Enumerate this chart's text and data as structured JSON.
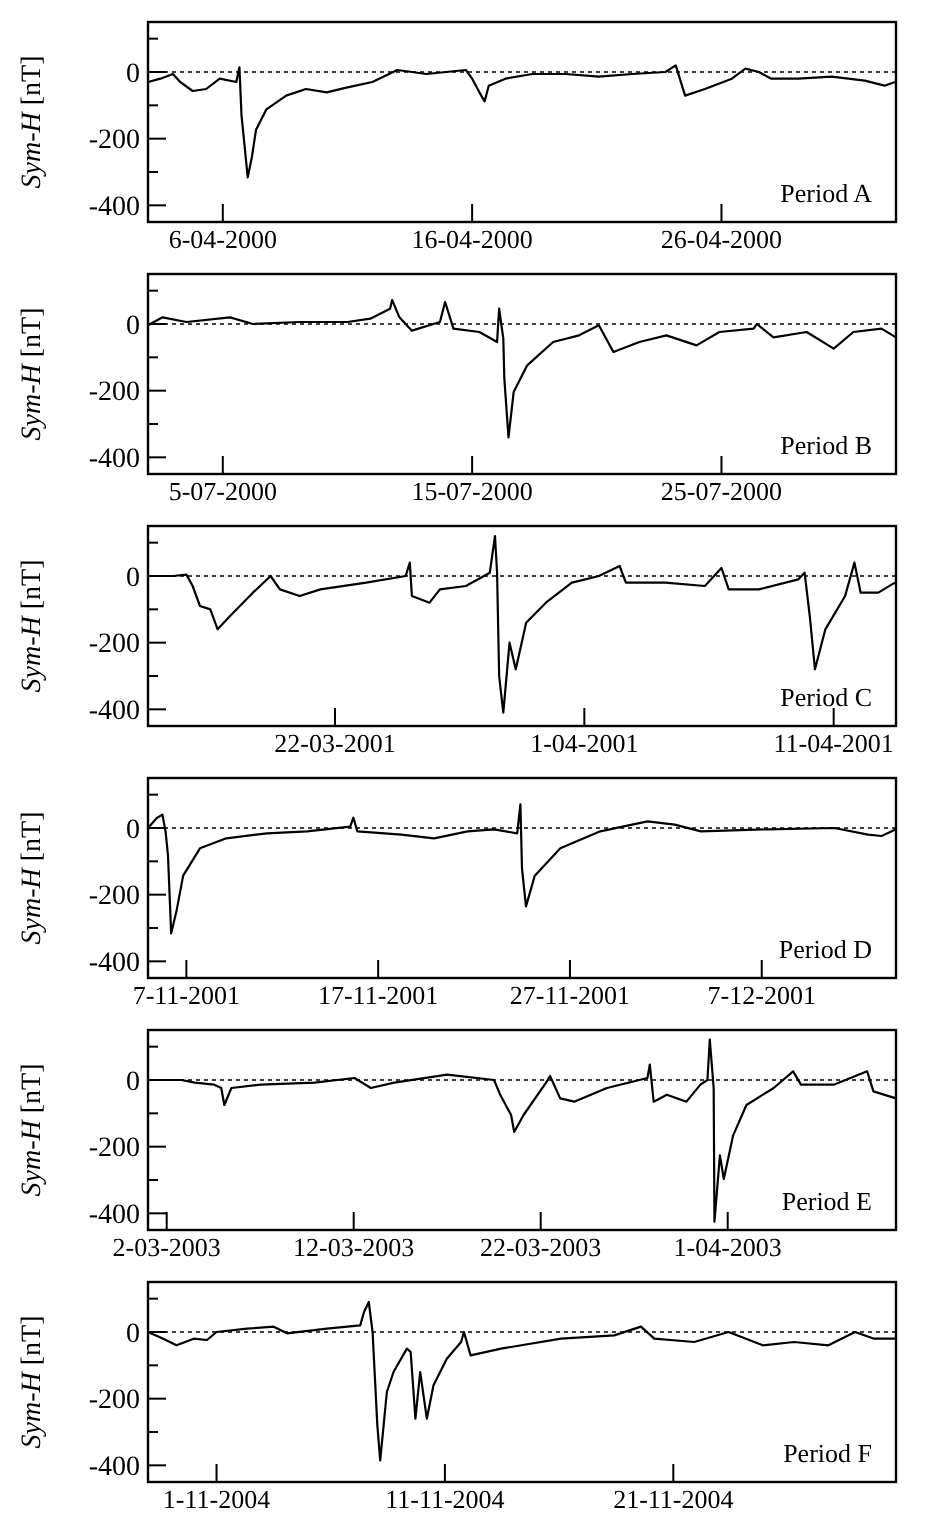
{
  "chart_data": [
    {
      "type": "line",
      "ylabel": "Sym-H [nT]",
      "annotations": [
        "Period A"
      ],
      "xlim": [
        "2000-04-03",
        "2000-05-03"
      ],
      "ylim": [
        -450,
        150
      ],
      "yticks": [
        {
          "value": 100,
          "label": null
        },
        0,
        {
          "value": -100,
          "label": null
        },
        -200,
        {
          "value": -300,
          "label": null
        },
        -400
      ],
      "xticks": [
        {
          "value": "2000-04-06",
          "label": "6-04-2000"
        },
        {
          "value": "2000-04-16",
          "label": "16-04-2000"
        },
        {
          "value": "2000-04-26",
          "label": "26-04-2000"
        }
      ],
      "ref_lines": [
        {
          "axis": "y",
          "value": 0,
          "line_style": "dotted"
        }
      ],
      "line_style": "solid",
      "series": [
        {
          "color": "#000000",
          "x": [
            "2000-04-03T00:00",
            "2000-04-03T12:00",
            "2000-04-04T00:00",
            "2000-04-04T07:00",
            "2000-04-04T19:00",
            "2000-04-05T08:00",
            "2000-04-05T21:00",
            "2000-04-06T13:00",
            "2000-04-06T16:00",
            "2000-04-06T18:00",
            "2000-04-07T00:00",
            "2000-04-07T04:00",
            "2000-04-07T08:00",
            "2000-04-07T18:00",
            "2000-04-08T13:00",
            "2000-04-09T08:00",
            "2000-04-10T04:00",
            "2000-04-10T23:00",
            "2000-04-12T00:00",
            "2000-04-13T00:00",
            "2000-04-14T04:00",
            "2000-04-15T18:00",
            "2000-04-16T00:00",
            "2000-04-16T07:00",
            "2000-04-16T12:00",
            "2000-04-16T16:00",
            "2000-04-17T08:00",
            "2000-04-18T10:00",
            "2000-04-19T18:00",
            "2000-04-21T02:00",
            "2000-04-22T10:00",
            "2000-04-23T18:00",
            "2000-04-24T04:00",
            "2000-04-24T10:00",
            "2000-04-24T13:00",
            "2000-04-25T08:00",
            "2000-04-26T10:00",
            "2000-04-26T23:00",
            "2000-04-27T12:00",
            "2000-04-28T00:00",
            "2000-04-29T02:00",
            "2000-04-30T10:00",
            "2000-05-01T18:00",
            "2000-05-02T13:00",
            "2000-05-02T23:00"
          ],
          "values": [
            -30,
            -20,
            -6,
            -30,
            -57,
            -51,
            -20,
            -30,
            14,
            -130,
            -316,
            -255,
            -173,
            -112,
            -71,
            -51,
            -61,
            -47,
            -30,
            6,
            -6,
            6,
            -20,
            -61,
            -88,
            -41,
            -20,
            -6,
            -6,
            -14,
            -6,
            0,
            20,
            -41,
            -71,
            -51,
            -20,
            10,
            0,
            -20,
            -20,
            -14,
            -26,
            -41,
            -30
          ]
        }
      ]
    },
    {
      "type": "line",
      "ylabel": "Sym-H [nT]",
      "annotations": [
        "Period B"
      ],
      "xlim": [
        "2000-07-02",
        "2000-08-01"
      ],
      "ylim": [
        -450,
        150
      ],
      "yticks": [
        {
          "value": 100,
          "label": null
        },
        0,
        {
          "value": -100,
          "label": null
        },
        -200,
        {
          "value": -300,
          "label": null
        },
        -400
      ],
      "xticks": [
        {
          "value": "2000-07-05",
          "label": "5-07-2000"
        },
        {
          "value": "2000-07-15",
          "label": "15-07-2000"
        },
        {
          "value": "2000-07-25",
          "label": "25-07-2000"
        }
      ],
      "ref_lines": [
        {
          "axis": "y",
          "value": 0,
          "line_style": "dotted"
        }
      ],
      "line_style": "solid",
      "series": [
        {
          "color": "#000000",
          "x": [
            "2000-07-02T00:00",
            "2000-07-02T14:00",
            "2000-07-03T13:00",
            "2000-07-05T07:00",
            "2000-07-06T05:00",
            "2000-07-08T02:00",
            "2000-07-10T00:00",
            "2000-07-10T22:00",
            "2000-07-11T17:00",
            "2000-07-11T19:00",
            "2000-07-12T02:00",
            "2000-07-12T14:00",
            "2000-07-13T17:00",
            "2000-07-13T22:00",
            "2000-07-14T06:00",
            "2000-07-15T07:00",
            "2000-07-16T00:00",
            "2000-07-16T02:00",
            "2000-07-16T06:00",
            "2000-07-16T07:00",
            "2000-07-16T11:00",
            "2000-07-16T16:00",
            "2000-07-17T05:00",
            "2000-07-18T06:00",
            "2000-07-19T07:00",
            "2000-07-20T02:00",
            "2000-07-20T16:00",
            "2000-07-21T17:00",
            "2000-07-22T19:00",
            "2000-07-24T00:00",
            "2000-07-24T22:00",
            "2000-07-26T07:00",
            "2000-07-26T10:00",
            "2000-07-27T02:00",
            "2000-07-28T10:00",
            "2000-07-29T12:00",
            "2000-07-30T07:00",
            "2000-07-31T10:00",
            "2000-08-01T00:00"
          ],
          "values": [
            -4,
            20,
            6,
            20,
            0,
            6,
            6,
            16,
            46,
            72,
            20,
            -20,
            6,
            66,
            -14,
            -24,
            -54,
            46,
            -44,
            -164,
            -340,
            -204,
            -124,
            -54,
            -34,
            -4,
            -84,
            -54,
            -34,
            -64,
            -24,
            -14,
            0,
            -40,
            -24,
            -74,
            -24,
            -14,
            -40
          ]
        }
      ]
    },
    {
      "type": "line",
      "ylabel": "Sym-H [nT]",
      "annotations": [
        "Period C"
      ],
      "xlim": [
        "2001-03-14T12:00",
        "2001-04-13T12:00"
      ],
      "ylim": [
        -450,
        150
      ],
      "yticks": [
        {
          "value": 100,
          "label": null
        },
        0,
        {
          "value": -100,
          "label": null
        },
        -200,
        {
          "value": -300,
          "label": null
        },
        -400
      ],
      "xticks": [
        {
          "value": "2001-03-22",
          "label": "22-03-2001"
        },
        {
          "value": "2001-04-01",
          "label": "1-04-2001"
        },
        {
          "value": "2001-04-11",
          "label": "11-04-2001"
        }
      ],
      "ref_lines": [
        {
          "axis": "y",
          "value": 0,
          "line_style": "dotted"
        }
      ],
      "line_style": "solid",
      "series": [
        {
          "color": "#000000",
          "x": [
            "2001-03-14T12:00",
            "2001-03-15T12:00",
            "2001-03-16T01:00",
            "2001-03-16T07:00",
            "2001-03-16T14:00",
            "2001-03-17T00:00",
            "2001-03-17T07:00",
            "2001-03-17T19:00",
            "2001-03-18T17:00",
            "2001-03-19T10:00",
            "2001-03-19T19:00",
            "2001-03-20T14:00",
            "2001-03-21T10:00",
            "2001-03-23T06:00",
            "2001-03-24T20:00",
            "2001-03-25T00:00",
            "2001-03-25T02:00",
            "2001-03-25T19:00",
            "2001-03-26T05:00",
            "2001-03-27T06:00",
            "2001-03-28T05:00",
            "2001-03-28T10:00",
            "2001-03-28T12:00",
            "2001-03-28T14:00",
            "2001-03-28T18:00",
            "2001-03-29T00:00",
            "2001-03-29T06:00",
            "2001-03-29T16:00",
            "2001-03-30T11:00",
            "2001-03-31T12:00",
            "2001-04-01T14:00",
            "2001-04-02T10:00",
            "2001-04-02T16:00",
            "2001-04-04T06:00",
            "2001-04-05T20:00",
            "2001-04-06T12:00",
            "2001-04-06T19:00",
            "2001-04-08T00:00",
            "2001-04-09T14:00",
            "2001-04-09T20:00",
            "2001-04-10T01:00",
            "2001-04-10T06:00",
            "2001-04-10T16:00",
            "2001-04-11T11:00",
            "2001-04-11T20:00",
            "2001-04-12T02:00",
            "2001-04-12T19:00",
            "2001-04-13T11:00"
          ],
          "values": [
            0,
            0,
            4,
            -30,
            -90,
            -100,
            -160,
            -120,
            -50,
            0,
            -40,
            -60,
            -40,
            -20,
            0,
            40,
            -60,
            -80,
            -40,
            -30,
            10,
            120,
            10,
            -300,
            -410,
            -200,
            -280,
            -140,
            -80,
            -20,
            0,
            30,
            -20,
            -20,
            -30,
            24,
            -40,
            -40,
            -10,
            10,
            -120,
            -280,
            -160,
            -60,
            40,
            -50,
            -50,
            -20
          ]
        }
      ]
    },
    {
      "type": "line",
      "ylabel": "Sym-H [nT]",
      "annotations": [
        "Period D"
      ],
      "xlim": [
        "2001-11-05",
        "2001-12-14"
      ],
      "ylim": [
        -450,
        150
      ],
      "yticks": [
        {
          "value": 100,
          "label": null
        },
        0,
        {
          "value": -100,
          "label": null
        },
        -200,
        {
          "value": -300,
          "label": null
        },
        -400
      ],
      "xticks": [
        {
          "value": "2001-11-07",
          "label": "7-11-2001"
        },
        {
          "value": "2001-11-17",
          "label": "17-11-2001"
        },
        {
          "value": "2001-11-27",
          "label": "27-11-2001"
        },
        {
          "value": "2001-12-07",
          "label": "7-12-2001"
        }
      ],
      "ref_lines": [
        {
          "axis": "y",
          "value": 0,
          "line_style": "dotted"
        }
      ],
      "line_style": "solid",
      "series": [
        {
          "color": "#000000",
          "x": [
            "2001-11-05T00:00",
            "2001-11-05T11:00",
            "2001-11-05T18:00",
            "2001-11-05T22:00",
            "2001-11-06T01:00",
            "2001-11-06T05:00",
            "2001-11-06T12:00",
            "2001-11-06T20:00",
            "2001-11-07T17:00",
            "2001-11-09T02:00",
            "2001-11-11T05:00",
            "2001-11-13T07:00",
            "2001-11-15T13:00",
            "2001-11-15T17:00",
            "2001-11-15T22:00",
            "2001-11-18T05:00",
            "2001-11-19T22:00",
            "2001-11-21T16:00",
            "2001-11-23T01:00",
            "2001-11-24T06:00",
            "2001-11-24T10:00",
            "2001-11-24T12:00",
            "2001-11-24T17:00",
            "2001-11-25T04:00",
            "2001-11-26T12:00",
            "2001-11-28T14:00",
            "2001-12-01T01:00",
            "2001-12-02T11:00",
            "2001-12-03T20:00",
            "2001-12-07T08:00",
            "2001-12-10T19:00",
            "2001-12-12T13:00",
            "2001-12-13T06:00",
            "2001-12-14T00:00"
          ],
          "values": [
            0,
            30,
            40,
            -10,
            -82,
            -316,
            -245,
            -143,
            -61,
            -31,
            -16,
            -10,
            4,
            31,
            -10,
            -20,
            -31,
            -10,
            -4,
            -16,
            71,
            -122,
            -235,
            -143,
            -61,
            -10,
            20,
            10,
            -10,
            -4,
            0,
            -20,
            -24,
            -4
          ]
        }
      ]
    },
    {
      "type": "line",
      "ylabel": "Sym-H [nT]",
      "annotations": [
        "Period E"
      ],
      "xlim": [
        "2003-03-01",
        "2003-04-10"
      ],
      "ylim": [
        -450,
        150
      ],
      "yticks": [
        {
          "value": 100,
          "label": null
        },
        0,
        {
          "value": -100,
          "label": null
        },
        -200,
        {
          "value": -300,
          "label": null
        },
        -400
      ],
      "xticks": [
        {
          "value": "2003-03-02",
          "label": "2-03-2003"
        },
        {
          "value": "2003-03-12",
          "label": "12-03-2003"
        },
        {
          "value": "2003-03-22",
          "label": "22-03-2003"
        },
        {
          "value": "2003-04-01",
          "label": "1-04-2003"
        }
      ],
      "ref_lines": [
        {
          "axis": "y",
          "value": 0,
          "line_style": "dotted"
        }
      ],
      "line_style": "solid",
      "series": [
        {
          "color": "#000000",
          "x": [
            "2003-03-01T00:00",
            "2003-03-02T19:00",
            "2003-03-03T12:00",
            "2003-03-04T13:00",
            "2003-03-04T22:00",
            "2003-03-05T02:00",
            "2003-03-05T11:00",
            "2003-03-07T01:00",
            "2003-03-09T22:00",
            "2003-03-12T01:00",
            "2003-03-12T22:00",
            "2003-03-14T04:00",
            "2003-03-17T00:00",
            "2003-03-19T12:00",
            "2003-03-19T20:00",
            "2003-03-20T10:00",
            "2003-03-20T14:00",
            "2003-03-21T02:00",
            "2003-03-22T08:00",
            "2003-03-22T12:00",
            "2003-03-23T01:00",
            "2003-03-23T19:00",
            "2003-03-25T13:00",
            "2003-03-27T17:00",
            "2003-03-27T20:00",
            "2003-03-28T01:00",
            "2003-03-28T18:00",
            "2003-03-29T19:00",
            "2003-03-30T13:00",
            "2003-03-30T22:00",
            "2003-03-31T01:00",
            "2003-03-31T06:00",
            "2003-03-31T07:00",
            "2003-03-31T14:00",
            "2003-03-31T19:00",
            "2003-04-01T07:00",
            "2003-04-02T00:00",
            "2003-04-03T11:00",
            "2003-04-04T12:00",
            "2003-04-04T22:00",
            "2003-04-06T16:00",
            "2003-04-08T11:00",
            "2003-04-08T19:00",
            "2003-04-10T00:00"
          ],
          "values": [
            0,
            0,
            -8,
            -14,
            -24,
            -75,
            -24,
            -14,
            -8,
            6,
            -24,
            -8,
            16,
            0,
            -44,
            -105,
            -156,
            -105,
            -4,
            12,
            -55,
            -65,
            -24,
            6,
            46,
            -65,
            -44,
            -65,
            -14,
            0,
            121,
            -24,
            -425,
            -226,
            -297,
            -166,
            -75,
            -24,
            26,
            -14,
            -14,
            26,
            -34,
            -55
          ]
        }
      ]
    },
    {
      "type": "line",
      "ylabel": "Sym-H [nT]",
      "annotations": [
        "Period F"
      ],
      "xlim": [
        "2004-10-29",
        "2004-11-30T18:00"
      ],
      "ylim": [
        -450,
        150
      ],
      "yticks": [
        {
          "value": 100,
          "label": null
        },
        0,
        {
          "value": -100,
          "label": null
        },
        -200,
        {
          "value": -300,
          "label": null
        },
        -400
      ],
      "xticks": [
        {
          "value": "2004-11-01",
          "label": "1-11-2004"
        },
        {
          "value": "2004-11-11",
          "label": "11-11-2004"
        },
        {
          "value": "2004-11-21",
          "label": "21-11-2004"
        }
      ],
      "ref_lines": [
        {
          "axis": "y",
          "value": 0,
          "line_style": "dotted"
        }
      ],
      "line_style": "solid",
      "series": [
        {
          "color": "#000000",
          "x": [
            "2004-10-29T00:00",
            "2004-10-29T16:00",
            "2004-10-30T06:00",
            "2004-10-31T00:00",
            "2004-10-31T14:00",
            "2004-11-01T00:00",
            "2004-11-02T08:00",
            "2004-11-03T12:00",
            "2004-11-04T02:00",
            "2004-11-05T20:00",
            "2004-11-07T07:00",
            "2004-11-07T11:00",
            "2004-11-07T16:00",
            "2004-11-07T20:00",
            "2004-11-08T01:00",
            "2004-11-08T04:00",
            "2004-11-08T11:00",
            "2004-11-08T18:00",
            "2004-11-09T08:00",
            "2004-11-09T12:00",
            "2004-11-09T17:00",
            "2004-11-09T22:00",
            "2004-11-10T05:00",
            "2004-11-10T12:00",
            "2004-11-11T02:00",
            "2004-11-11T17:00",
            "2004-11-11T20:00",
            "2004-11-12T03:00",
            "2004-11-13T11:00",
            "2004-11-16T02:00",
            "2004-11-18T10:00",
            "2004-11-19T14:00",
            "2004-11-20T04:00",
            "2004-11-21T22:00",
            "2004-11-23T10:00",
            "2004-11-24T22:00",
            "2004-11-26T07:00",
            "2004-11-27T19:00",
            "2004-11-28T23:00",
            "2004-11-29T19:00",
            "2004-11-30T18:00"
          ],
          "values": [
            0,
            -20,
            -40,
            -20,
            -24,
            0,
            10,
            16,
            -4,
            10,
            20,
            60,
            90,
            0,
            -280,
            -385,
            -180,
            -120,
            -50,
            -60,
            -260,
            -120,
            -260,
            -160,
            -80,
            -30,
            0,
            -70,
            -50,
            -20,
            -10,
            16,
            -20,
            -30,
            0,
            -40,
            -30,
            -40,
            0,
            -20,
            -20
          ]
        }
      ]
    }
  ]
}
